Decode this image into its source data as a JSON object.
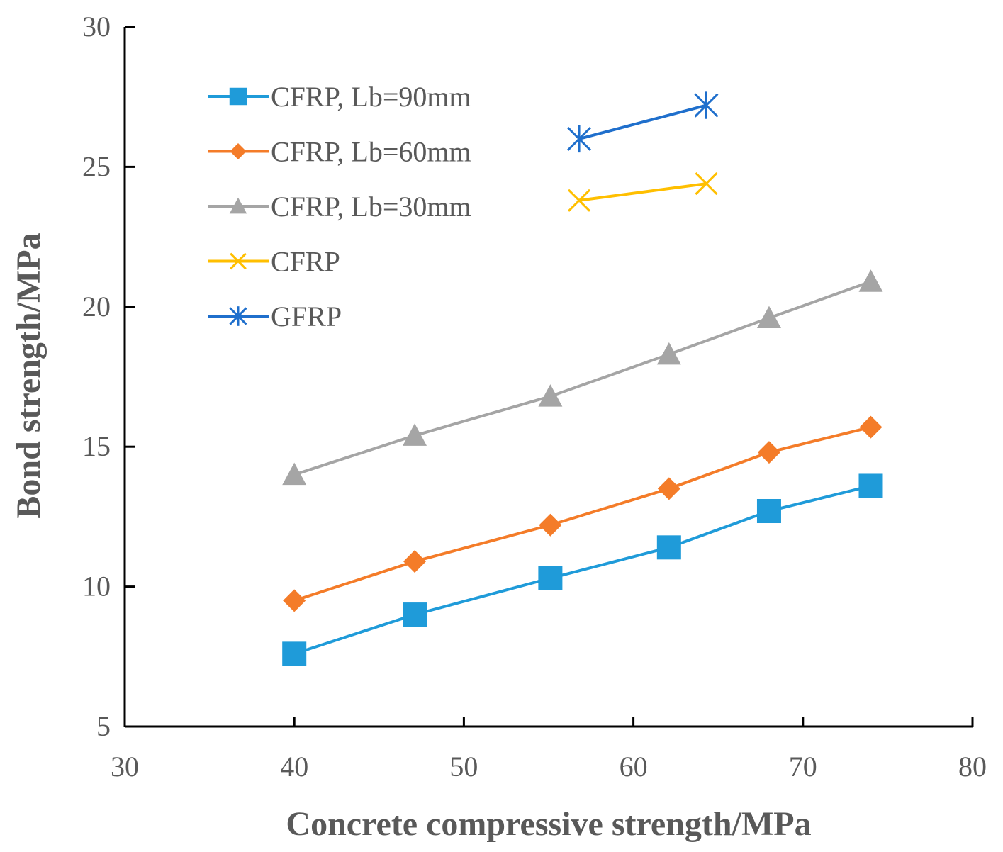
{
  "chart_data": {
    "type": "line",
    "title": "",
    "xlabel": "Concrete compressive strength/MPa",
    "ylabel": "Bond strength/MPa",
    "xlim": [
      30,
      80
    ],
    "ylim": [
      5,
      30
    ],
    "xticks": [
      30,
      40,
      50,
      60,
      70,
      80
    ],
    "yticks": [
      5,
      10,
      15,
      20,
      25,
      30
    ],
    "grid": false,
    "legend_position": "top-left",
    "series": [
      {
        "name": "CFRP, Lb=90mm",
        "color": "#1f9bd9",
        "marker": "square",
        "x": [
          40,
          47.1,
          55.1,
          62.1,
          68,
          74
        ],
        "y": [
          7.6,
          9,
          10.3,
          11.4,
          12.7,
          13.6
        ]
      },
      {
        "name": "CFRP, Lb=60mm",
        "color": "#f47c29",
        "marker": "diamond",
        "x": [
          40,
          47.1,
          55.1,
          62.1,
          68,
          74
        ],
        "y": [
          9.5,
          10.9,
          12.2,
          13.5,
          14.8,
          15.7
        ]
      },
      {
        "name": "CFRP, Lb=30mm",
        "color": "#a5a5a5",
        "marker": "triangle",
        "x": [
          40,
          47.1,
          55.1,
          62.1,
          68,
          74
        ],
        "y": [
          14,
          15.4,
          16.8,
          18.3,
          19.6,
          20.9
        ]
      },
      {
        "name": "CFRP",
        "color": "#ffbf00",
        "marker": "x",
        "x": [
          56.8,
          64.3
        ],
        "y": [
          23.8,
          24.4
        ]
      },
      {
        "name": "GFRP",
        "color": "#1f6fcc",
        "marker": "asterisk",
        "x": [
          56.8,
          64.3
        ],
        "y": [
          26,
          27.2
        ]
      }
    ]
  }
}
